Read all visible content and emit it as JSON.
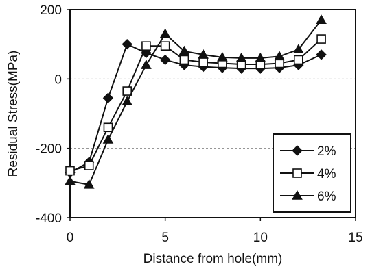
{
  "chart_data": {
    "type": "line",
    "title": "",
    "xlabel": "Distance from hole(mm)",
    "ylabel": "Residual Stress(MPa)",
    "xlim": [
      0,
      15
    ],
    "ylim": [
      -400,
      200
    ],
    "x_ticks": [
      "0",
      "5",
      "10",
      "15"
    ],
    "y_ticks": [
      "200",
      "0",
      "-200",
      "-400"
    ],
    "grid": "horizontal dashed",
    "legend_position": "lower-right",
    "series": [
      {
        "name": "2%",
        "marker": "diamond-filled",
        "x": [
          0,
          1,
          2,
          3,
          4,
          5,
          6,
          7,
          8,
          9,
          10,
          11,
          12,
          13.2
        ],
        "y": [
          -270,
          -240,
          -55,
          100,
          75,
          55,
          40,
          35,
          32,
          30,
          30,
          32,
          40,
          70
        ]
      },
      {
        "name": "4%",
        "marker": "square-open",
        "x": [
          0,
          1,
          2,
          3,
          4,
          5,
          6,
          7,
          8,
          9,
          10,
          11,
          12,
          13.2
        ],
        "y": [
          -265,
          -250,
          -140,
          -35,
          95,
          95,
          55,
          48,
          45,
          42,
          42,
          45,
          55,
          115
        ]
      },
      {
        "name": "6%",
        "marker": "triangle-filled",
        "x": [
          0,
          1,
          2,
          3,
          4,
          5,
          6,
          7,
          8,
          9,
          10,
          11,
          12,
          13.2
        ],
        "y": [
          -295,
          -305,
          -175,
          -65,
          40,
          130,
          80,
          70,
          62,
          60,
          60,
          65,
          85,
          170
        ]
      }
    ]
  }
}
